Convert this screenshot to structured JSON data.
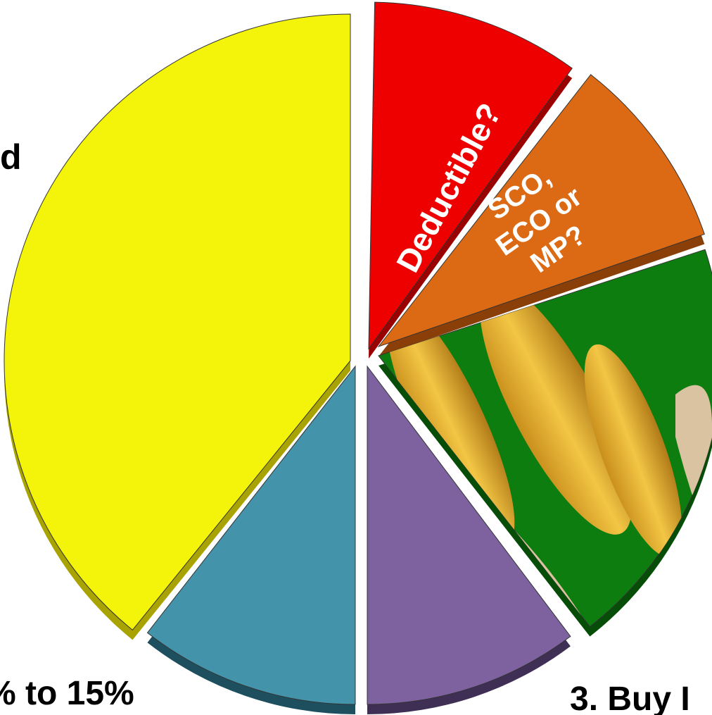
{
  "labels": {
    "left_top": "d",
    "deductible": "Deductible?",
    "sco_lines": [
      "SCO,",
      "ECO or",
      "MP?"
    ],
    "left_bottom": "% to 15%",
    "right_bottom": "3. Buy I"
  }
}
